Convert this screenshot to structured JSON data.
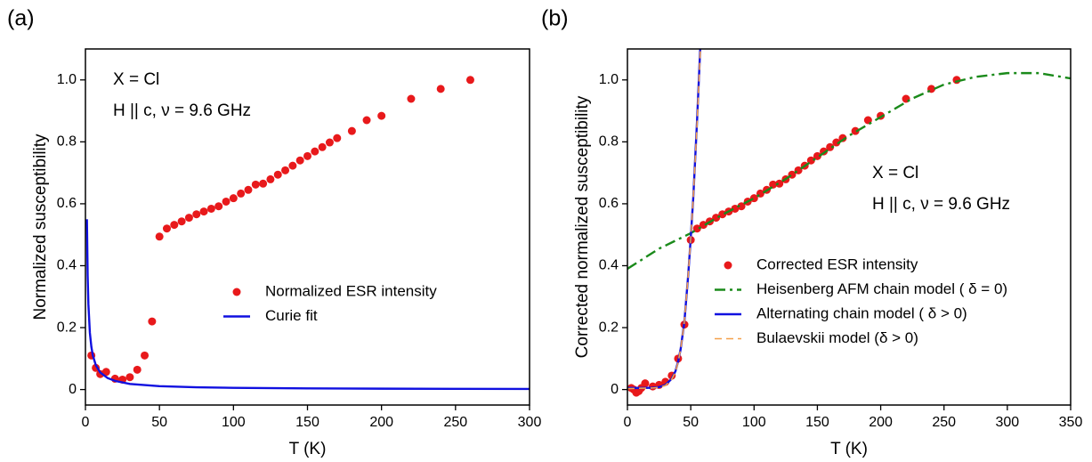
{
  "chart_data": [
    {
      "type": "scatter",
      "title": "(a)",
      "x_label": "T (K)",
      "y_label": "Normalized susceptibility",
      "xlim": [
        0,
        300
      ],
      "ylim": [
        -0.05,
        1.1
      ],
      "xticks": [
        0,
        50,
        100,
        150,
        200,
        250,
        300
      ],
      "yticks": [
        0,
        0.2,
        0.4,
        0.6,
        0.8,
        {
          "value": 1,
          "label": "1.0"
        }
      ],
      "legend": "lower right",
      "annotations": [
        "X = Cl",
        "H || c, ν = 9.6 GHz"
      ],
      "series": [
        {
          "name": "Normalized ESR intensity",
          "color": "#e8191b",
          "style": "markers",
          "x": [
            4,
            7,
            10,
            14,
            20,
            25,
            30,
            35,
            40,
            45,
            50,
            55,
            60,
            65,
            70,
            75,
            80,
            85,
            90,
            95,
            100,
            105,
            110,
            115,
            120,
            125,
            130,
            135,
            140,
            145,
            150,
            155,
            160,
            165,
            170,
            180,
            190,
            200,
            220,
            240,
            260
          ],
          "values": [
            0.11,
            0.07,
            0.05,
            0.057,
            0.035,
            0.032,
            0.04,
            0.064,
            0.11,
            0.22,
            0.494,
            0.52,
            0.532,
            0.543,
            0.555,
            0.566,
            0.575,
            0.584,
            0.592,
            0.607,
            0.618,
            0.633,
            0.645,
            0.662,
            0.665,
            0.679,
            0.694,
            0.708,
            0.723,
            0.74,
            0.754,
            0.769,
            0.783,
            0.798,
            0.812,
            0.835,
            0.87,
            0.884,
            0.939,
            0.971,
            1.0
          ]
        },
        {
          "name": "Curie fit",
          "color": "#1010e0",
          "style": "solid",
          "x": [
            1,
            1.5,
            2,
            3,
            4,
            5,
            7,
            10,
            15,
            20,
            30,
            50,
            75,
            100,
            150,
            200,
            250,
            300
          ],
          "values": [
            0.55,
            0.367,
            0.275,
            0.183,
            0.138,
            0.11,
            0.079,
            0.055,
            0.037,
            0.028,
            0.018,
            0.011,
            0.0073,
            0.0055,
            0.0037,
            0.0028,
            0.0022,
            0.0018
          ]
        }
      ]
    },
    {
      "type": "scatter",
      "title": "(b)",
      "x_label": "T (K)",
      "y_label": "Corrected normalized susceptibility",
      "xlim": [
        0,
        350
      ],
      "ylim": [
        -0.05,
        1.1
      ],
      "xticks": [
        0,
        50,
        100,
        150,
        200,
        250,
        300,
        350
      ],
      "yticks": [
        0,
        0.2,
        0.4,
        0.6,
        0.8,
        {
          "value": 1,
          "label": "1.0"
        }
      ],
      "legend": "center",
      "annotations": [
        "X = Cl",
        "H || c, ν = 9.6 GHz"
      ],
      "series": [
        {
          "name": "Corrected ESR intensity",
          "color": "#e8191b",
          "style": "markers",
          "x": [
            3,
            5,
            7,
            9,
            11,
            14,
            20,
            25,
            30,
            35,
            40,
            45,
            50,
            55,
            60,
            65,
            70,
            75,
            80,
            85,
            90,
            95,
            100,
            105,
            110,
            115,
            120,
            125,
            130,
            135,
            140,
            145,
            150,
            155,
            160,
            165,
            170,
            180,
            190,
            200,
            220,
            240,
            260
          ],
          "values": [
            0.005,
            0.0,
            -0.01,
            -0.005,
            0.005,
            0.02,
            0.01,
            0.015,
            0.025,
            0.045,
            0.1,
            0.21,
            0.483,
            0.52,
            0.532,
            0.543,
            0.555,
            0.566,
            0.575,
            0.584,
            0.592,
            0.607,
            0.618,
            0.633,
            0.645,
            0.662,
            0.665,
            0.679,
            0.694,
            0.708,
            0.723,
            0.74,
            0.754,
            0.769,
            0.783,
            0.798,
            0.812,
            0.835,
            0.87,
            0.884,
            0.939,
            0.971,
            1.0
          ]
        },
        {
          "name": "Heisenberg AFM chain model ( δ = 0)",
          "color": "#1a8a1a",
          "style": "dashdot",
          "x": [
            0,
            25,
            50,
            75,
            100,
            125,
            150,
            175,
            200,
            225,
            250,
            275,
            300,
            325,
            350
          ],
          "values": [
            0.39,
            0.455,
            0.505,
            0.565,
            0.618,
            0.68,
            0.75,
            0.82,
            0.88,
            0.94,
            0.985,
            1.01,
            1.022,
            1.022,
            1.005
          ]
        },
        {
          "name": "Alternating chain model ( δ > 0)",
          "color": "#1010e0",
          "style": "solid",
          "x": [
            0,
            10,
            20,
            25,
            30,
            35,
            38,
            40,
            42,
            45,
            48,
            50,
            52,
            55,
            58
          ],
          "values": [
            0.005,
            0.005,
            0.006,
            0.008,
            0.015,
            0.035,
            0.06,
            0.09,
            0.13,
            0.22,
            0.37,
            0.49,
            0.62,
            0.87,
            1.15
          ]
        },
        {
          "name": "Bulaevskii model (δ > 0)",
          "color": "#f5a04a",
          "style": "dashed",
          "x": [
            0,
            10,
            20,
            25,
            30,
            35,
            38,
            40,
            42,
            45,
            48,
            50,
            52,
            55,
            58
          ],
          "values": [
            0.003,
            0.004,
            0.005,
            0.007,
            0.013,
            0.033,
            0.058,
            0.088,
            0.13,
            0.22,
            0.37,
            0.49,
            0.62,
            0.86,
            1.14
          ]
        }
      ]
    }
  ]
}
